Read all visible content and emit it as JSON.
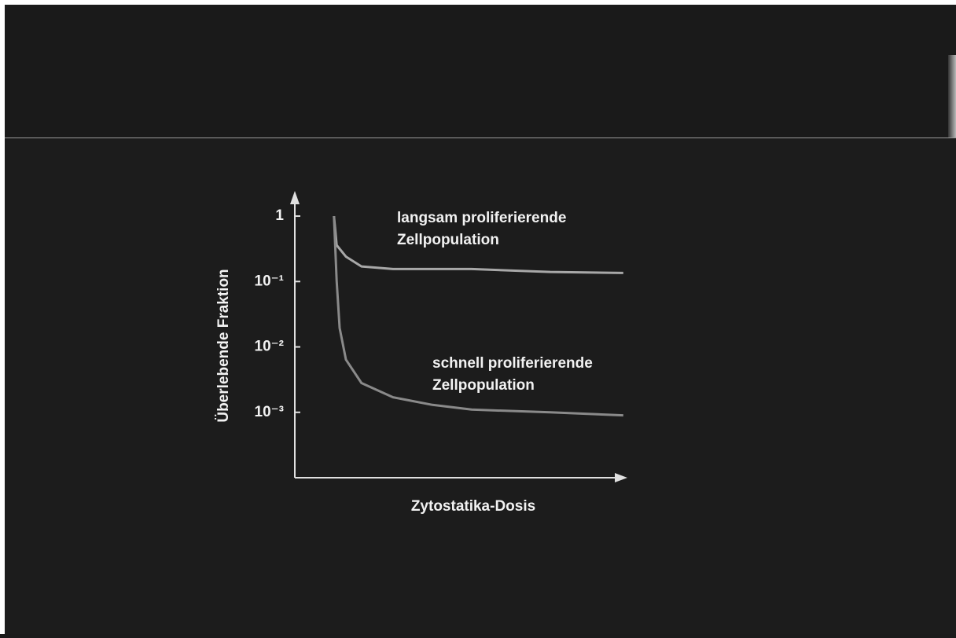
{
  "chart_data": {
    "type": "line",
    "x_label": "Zytostatika-Dosis",
    "y_label": "Überlebende Fraktion",
    "log_y": true,
    "xlim": [
      0,
      100
    ],
    "ylim": [
      0.0001,
      2
    ],
    "yticks": [
      1,
      {
        "value": 0.1,
        "label": "10⁻¹"
      },
      {
        "value": 0.01,
        "label": "10⁻²"
      },
      {
        "value": 0.001,
        "label": "10⁻³"
      }
    ],
    "series": [
      {
        "color": "#a8a8a8",
        "x": [
          11.8,
          12.6,
          15.4,
          20.1,
          29.6,
          53.3,
          77,
          99
        ],
        "values": [
          1,
          0.36,
          0.24,
          0.17,
          0.155,
          0.155,
          0.14,
          0.135
        ]
      },
      {
        "color": "#8a8a8a",
        "x": [
          11.8,
          12.6,
          13.5,
          15.4,
          20.1,
          29.6,
          41.5,
          53.3,
          77,
          99
        ],
        "values": [
          1,
          0.103,
          0.0195,
          0.0064,
          0.0028,
          0.0017,
          0.0013,
          0.0011,
          0.001,
          0.0009
        ]
      }
    ],
    "annotations": [
      {
        "lines": [
          "langsam proliferierende",
          "Zellpopulation"
        ]
      },
      {
        "lines": [
          "schnell proliferierende",
          "Zellpopulation"
        ]
      }
    ]
  }
}
